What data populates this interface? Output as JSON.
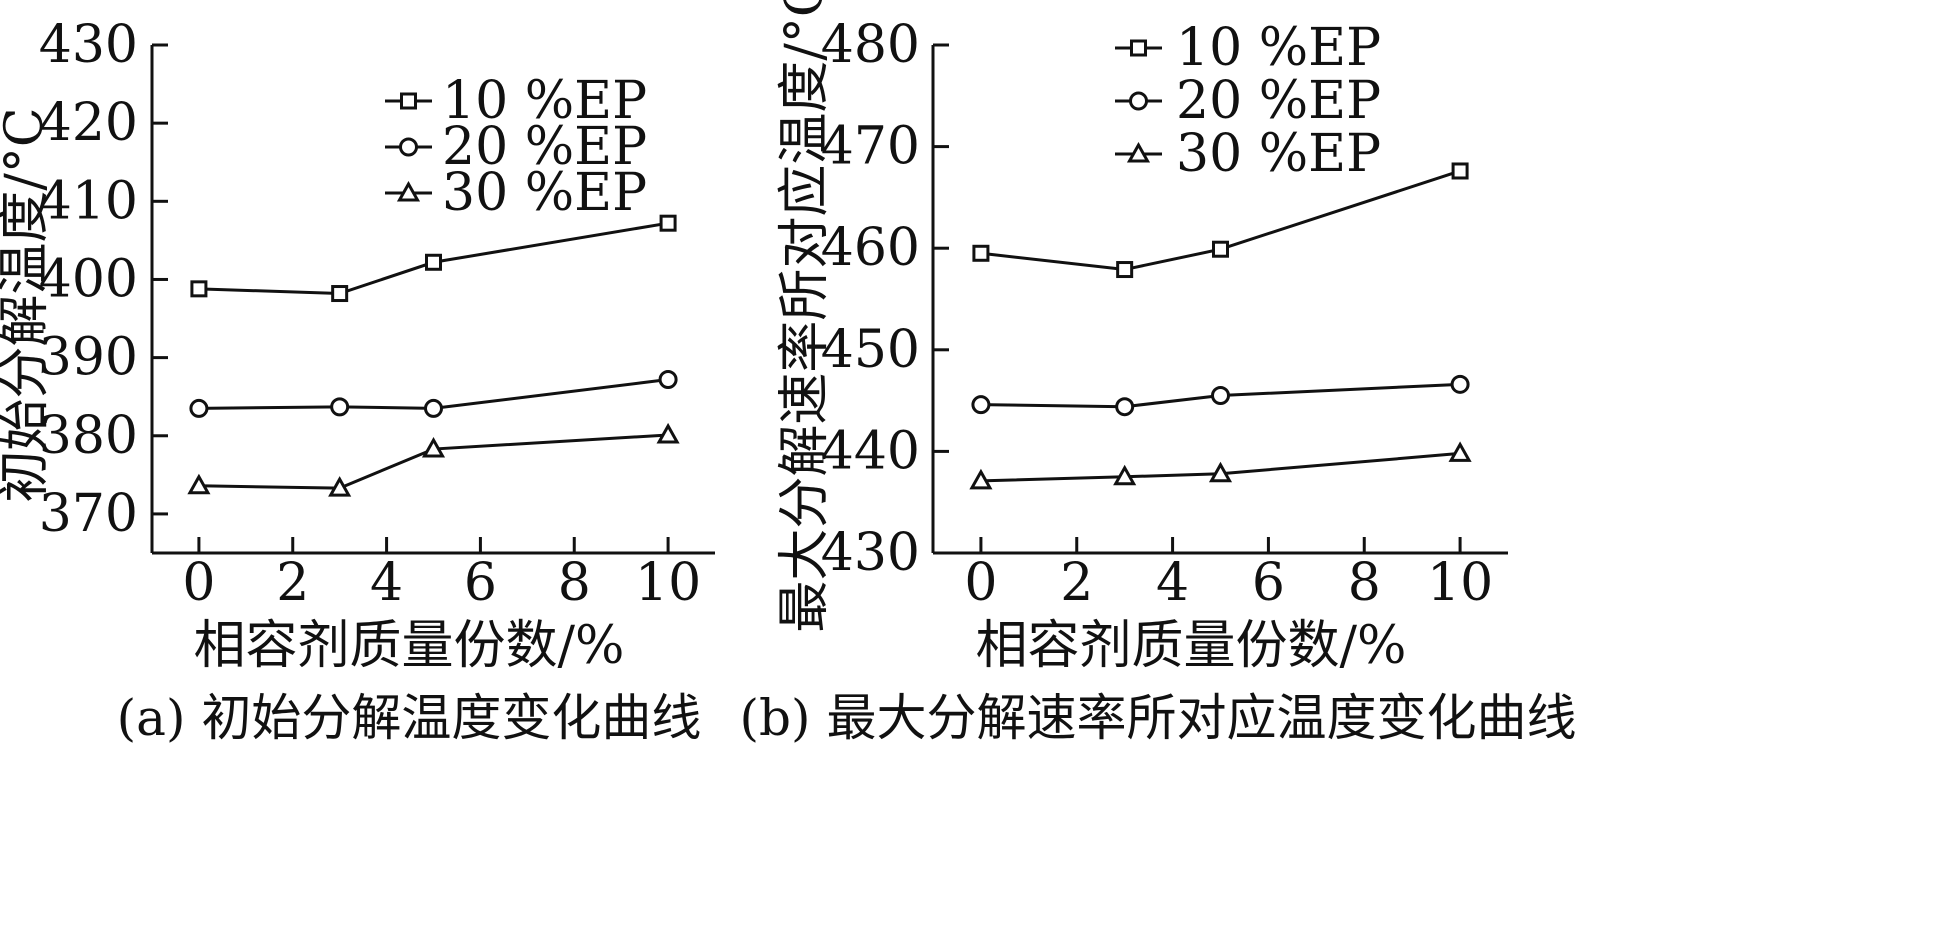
{
  "chart_data": [
    {
      "type": "line",
      "title": "",
      "caption": "(a) 初始分解温度变化曲线",
      "xlabel": "相容剂质量份数/%",
      "ylabel": "初始分解温度/°C",
      "xlim": [
        -1,
        11
      ],
      "ylim": [
        365,
        430
      ],
      "xticks": [
        0,
        2,
        4,
        6,
        8,
        10
      ],
      "yticks": [
        370,
        380,
        390,
        400,
        410,
        420,
        430
      ],
      "x": [
        0,
        3,
        5,
        10
      ],
      "series": [
        {
          "name": "10 %EP",
          "marker": "square",
          "values": [
            398.8,
            398.2,
            402.2,
            407.2
          ]
        },
        {
          "name": "20 %EP",
          "marker": "circle",
          "values": [
            383.5,
            383.7,
            383.5,
            387.2
          ]
        },
        {
          "name": "30 %EP",
          "marker": "triangle",
          "values": [
            373.6,
            373.3,
            378.3,
            380.1
          ]
        }
      ],
      "legend_position": "top-right",
      "grid": false
    },
    {
      "type": "line",
      "title": "",
      "caption": "(b) 最大分解速率所对应温度变化曲线",
      "xlabel": "相容剂质量份数/%",
      "ylabel": "最大分解速率所对应温度/°C",
      "xlim": [
        -1,
        11
      ],
      "ylim": [
        430,
        480
      ],
      "xticks": [
        0,
        2,
        4,
        6,
        8,
        10
      ],
      "yticks": [
        430,
        440,
        450,
        460,
        470,
        480
      ],
      "x": [
        0,
        3,
        5,
        10
      ],
      "series": [
        {
          "name": "10 %EP",
          "marker": "square",
          "values": [
            459.5,
            457.9,
            459.9,
            467.6
          ]
        },
        {
          "name": "20 %EP",
          "marker": "circle",
          "values": [
            444.6,
            444.4,
            445.5,
            446.6
          ]
        },
        {
          "name": "30 %EP",
          "marker": "triangle",
          "values": [
            437.1,
            437.5,
            437.8,
            439.8
          ]
        }
      ],
      "legend_position": "top-left",
      "grid": false
    }
  ]
}
